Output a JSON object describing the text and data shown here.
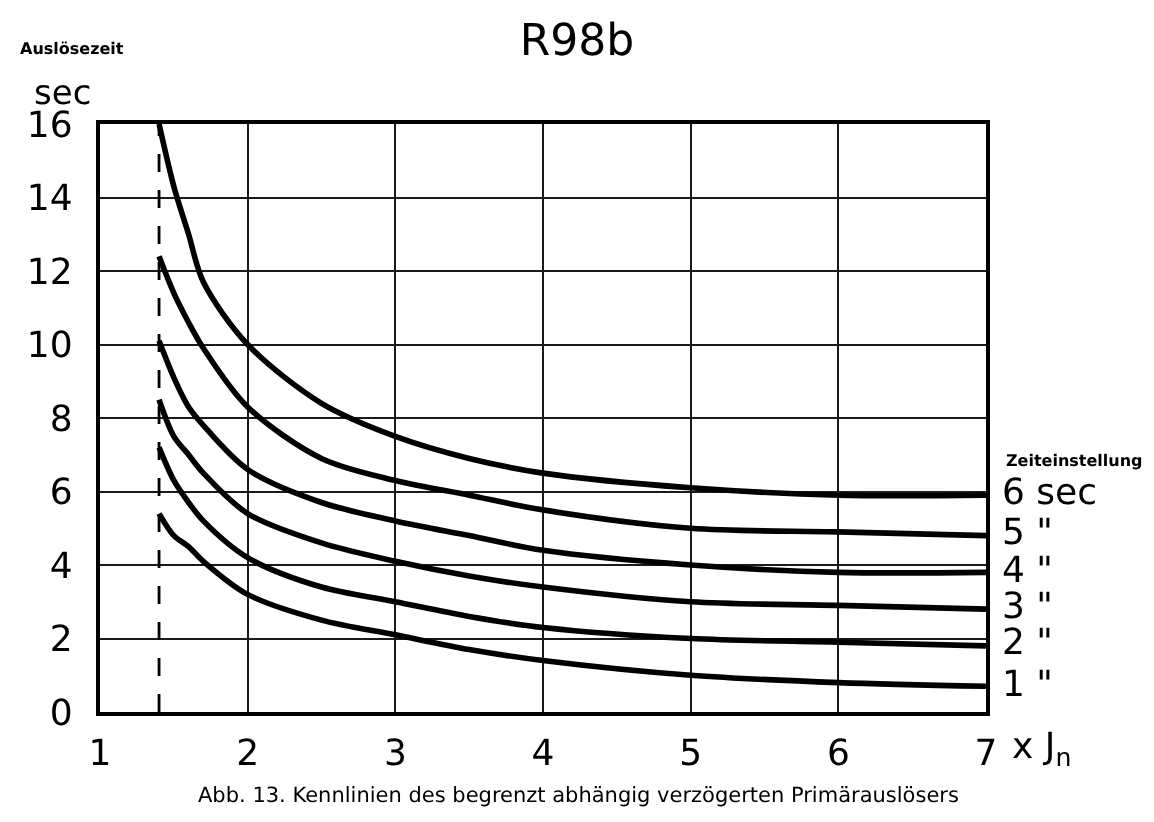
{
  "chart_data": {
    "type": "line",
    "title": "R98b",
    "ylabel": "Auslösezeit\nsec",
    "xlabel": "x J$_{n}$",
    "legend_title": "Zeiteinstellung",
    "x": [
      1.4,
      1.5,
      1.6,
      1.7,
      2,
      2.5,
      3,
      3.5,
      4,
      5,
      6,
      7
    ],
    "series": [
      {
        "name": "6 sec",
        "color": "#000000",
        "values": [
          16,
          14.3,
          13.0,
          11.7,
          10.0,
          8.4,
          7.5,
          6.9,
          6.5,
          6.1,
          5.9,
          5.9
        ]
      },
      {
        "name": "5 \"",
        "color": "#000000",
        "values": [
          12.4,
          11.4,
          10.6,
          9.9,
          8.3,
          6.9,
          6.3,
          5.9,
          5.5,
          5.0,
          4.9,
          4.8
        ]
      },
      {
        "name": "4 \"",
        "color": "#000000",
        "values": [
          10.1,
          9.1,
          8.3,
          7.8,
          6.6,
          5.7,
          5.2,
          4.8,
          4.4,
          4.0,
          3.8,
          3.8
        ]
      },
      {
        "name": "3 \"",
        "color": "#000000",
        "values": [
          8.5,
          7.5,
          7.0,
          6.5,
          5.4,
          4.6,
          4.1,
          3.7,
          3.4,
          3.0,
          2.9,
          2.8
        ]
      },
      {
        "name": "2 \"",
        "color": "#000000",
        "values": [
          7.2,
          6.3,
          5.7,
          5.2,
          4.2,
          3.4,
          3.0,
          2.6,
          2.3,
          2.0,
          1.9,
          1.8
        ]
      },
      {
        "name": "1 \"",
        "color": "#000000",
        "values": [
          5.4,
          4.8,
          4.5,
          4.1,
          3.2,
          2.5,
          2.1,
          1.7,
          1.4,
          1.0,
          0.8,
          0.7
        ]
      }
    ],
    "xlim": [
      1,
      7
    ],
    "xticks": [
      1,
      2,
      3,
      4,
      5,
      6,
      7
    ],
    "ylim": [
      0,
      16
    ],
    "yticks": [
      0,
      2,
      4,
      6,
      8,
      10,
      12,
      14,
      16
    ],
    "grid": true,
    "ref_lines": [
      {
        "axis": "x",
        "value": 1.4,
        "line_style": "dashed",
        "color": "#000000"
      }
    ],
    "annotations": [
      "Abb. 13. Kennlinien des begrenzt abhängig verzögerten Primärauslösers"
    ]
  }
}
